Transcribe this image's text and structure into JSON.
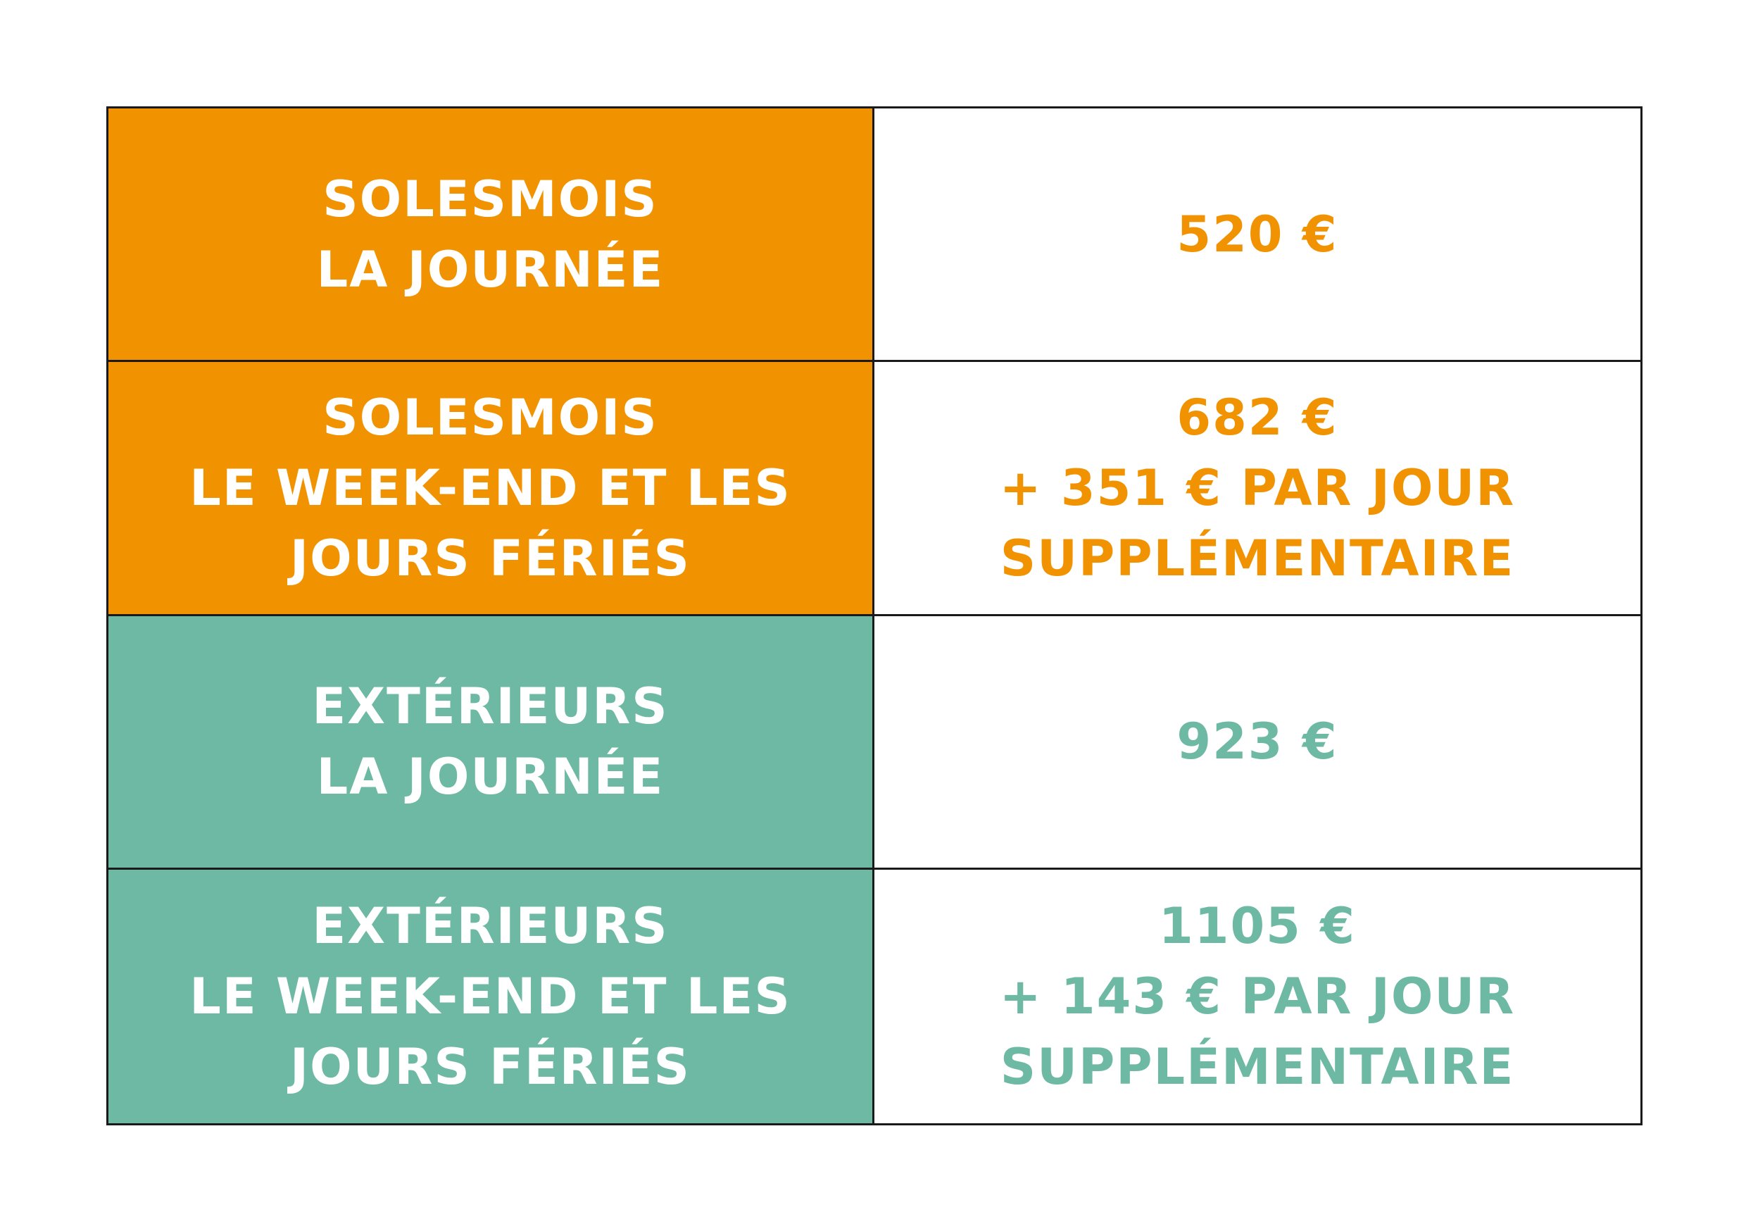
{
  "colors": {
    "orange": "#F19200",
    "teal": "#6DB9A3",
    "border": "#1a1a1a",
    "background": "#ffffff"
  },
  "rows": [
    {
      "theme": "orange",
      "label_lines": [
        "SOLESMOIS",
        "LA JOURNÉE"
      ],
      "value_lines": [
        "520 €"
      ]
    },
    {
      "theme": "orange",
      "label_lines": [
        "SOLESMOIS",
        "LE WEEK-END ET LES",
        "JOURS FÉRIÉS"
      ],
      "value_lines": [
        "682 €",
        "+ 351 € PAR JOUR",
        "SUPPLÉMENTAIRE"
      ]
    },
    {
      "theme": "teal",
      "label_lines": [
        "EXTÉRIEURS",
        "LA JOURNÉE"
      ],
      "value_lines": [
        "923 €"
      ]
    },
    {
      "theme": "teal",
      "label_lines": [
        "EXTÉRIEURS",
        "LE WEEK-END ET LES",
        "JOURS FÉRIÉS"
      ],
      "value_lines": [
        "1105 €",
        "+ 143 € PAR JOUR",
        "SUPPLÉMENTAIRE"
      ]
    }
  ]
}
